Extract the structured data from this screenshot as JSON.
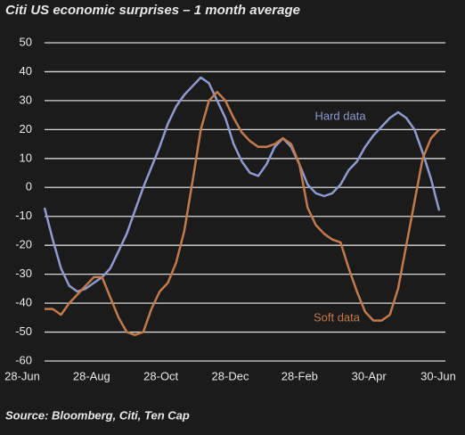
{
  "chart_data": {
    "type": "line",
    "title": "Citi US economic surprises – 1 month average",
    "source": "Source: Bloomberg, Citi, Ten Cap",
    "categories": [
      "28-Jun",
      null,
      null,
      null,
      null,
      null,
      null,
      null,
      "28-Aug",
      null,
      null,
      null,
      null,
      null,
      null,
      null,
      "28-Oct",
      null,
      null,
      null,
      null,
      null,
      null,
      null,
      "28-Dec",
      null,
      null,
      null,
      null,
      null,
      null,
      null,
      "28-Feb",
      null,
      null,
      null,
      null,
      null,
      null,
      null,
      "30-Apr",
      null,
      null,
      null,
      null,
      null,
      null,
      null,
      "30-Jun"
    ],
    "series": [
      {
        "name": "Hard data",
        "color": "#8f9bd0",
        "values": [
          -7,
          -18,
          -28,
          -34,
          -36,
          -35,
          -33,
          -31,
          -28,
          -22,
          -16,
          -8,
          0,
          7,
          14,
          22,
          28,
          32,
          35,
          38,
          36,
          30,
          24,
          15,
          9,
          5,
          4,
          8,
          14,
          17,
          14,
          8,
          1,
          -2,
          -3,
          -2,
          1,
          6,
          9,
          14,
          18,
          21,
          24,
          26,
          24,
          20,
          12,
          3,
          -8
        ]
      },
      {
        "name": "Soft data",
        "color": "#c27a4c",
        "values": [
          -42,
          -42,
          -44,
          -40,
          -37,
          -34,
          -31,
          -31,
          -38,
          -45,
          -50,
          -51,
          -50,
          -42,
          -36,
          -33,
          -26,
          -15,
          2,
          20,
          30,
          33,
          30,
          24,
          19,
          16,
          14,
          14,
          15,
          17,
          15,
          8,
          -7,
          -13,
          -16,
          -18,
          -19,
          -28,
          -36,
          -43,
          -46,
          -46,
          -44,
          -35,
          -20,
          -5,
          10,
          17,
          20
        ]
      }
    ],
    "ylim": [
      -60,
      50
    ],
    "yticks": [
      -60,
      -50,
      -40,
      -30,
      -20,
      -10,
      0,
      10,
      20,
      30,
      40,
      50
    ],
    "grid": true
  }
}
